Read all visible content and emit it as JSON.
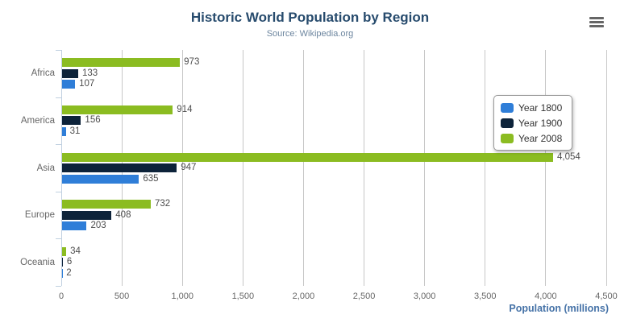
{
  "header": {
    "title": "Historic World Population by Region",
    "subtitle": "Source: Wikipedia.org"
  },
  "chart_data": {
    "type": "bar",
    "orientation": "horizontal",
    "title": "Historic World Population by Region",
    "subtitle": "Source: Wikipedia.org",
    "categories": [
      "Africa",
      "America",
      "Asia",
      "Europe",
      "Oceania"
    ],
    "series": [
      {
        "name": "Year 1800",
        "color": "#2f7ed8",
        "values": [
          107,
          31,
          635,
          203,
          2
        ]
      },
      {
        "name": "Year 1900",
        "color": "#0d233a",
        "values": [
          133,
          156,
          947,
          408,
          6
        ]
      },
      {
        "name": "Year 2008",
        "color": "#8bbc21",
        "values": [
          973,
          914,
          4054,
          732,
          34
        ]
      }
    ],
    "bar_order_top_to_bottom": [
      "Year 2008",
      "Year 1900",
      "Year 1800"
    ],
    "xlabel": "Population (millions)",
    "ylabel": "",
    "xlim": [
      0,
      4500
    ],
    "x_tick_interval": 500,
    "x_tick_labels": [
      "0",
      "500",
      "1,000",
      "1,500",
      "2,000",
      "2,500",
      "3,000",
      "3,500",
      "4,000",
      "4,500"
    ],
    "grid": true,
    "data_labels": true,
    "legend_position": "middle-right"
  },
  "colors": {
    "title": "#274b6d",
    "subtitle": "#6d869f",
    "axis_title": "#4572a7",
    "grid_line": "#c7c7c7",
    "axis_line": "#c0d0e0",
    "tick_label": "#666666",
    "value_label": "#4d4d4d",
    "legend_border": "#999999",
    "menu_icon": "#666666",
    "background": "#ffffff"
  }
}
